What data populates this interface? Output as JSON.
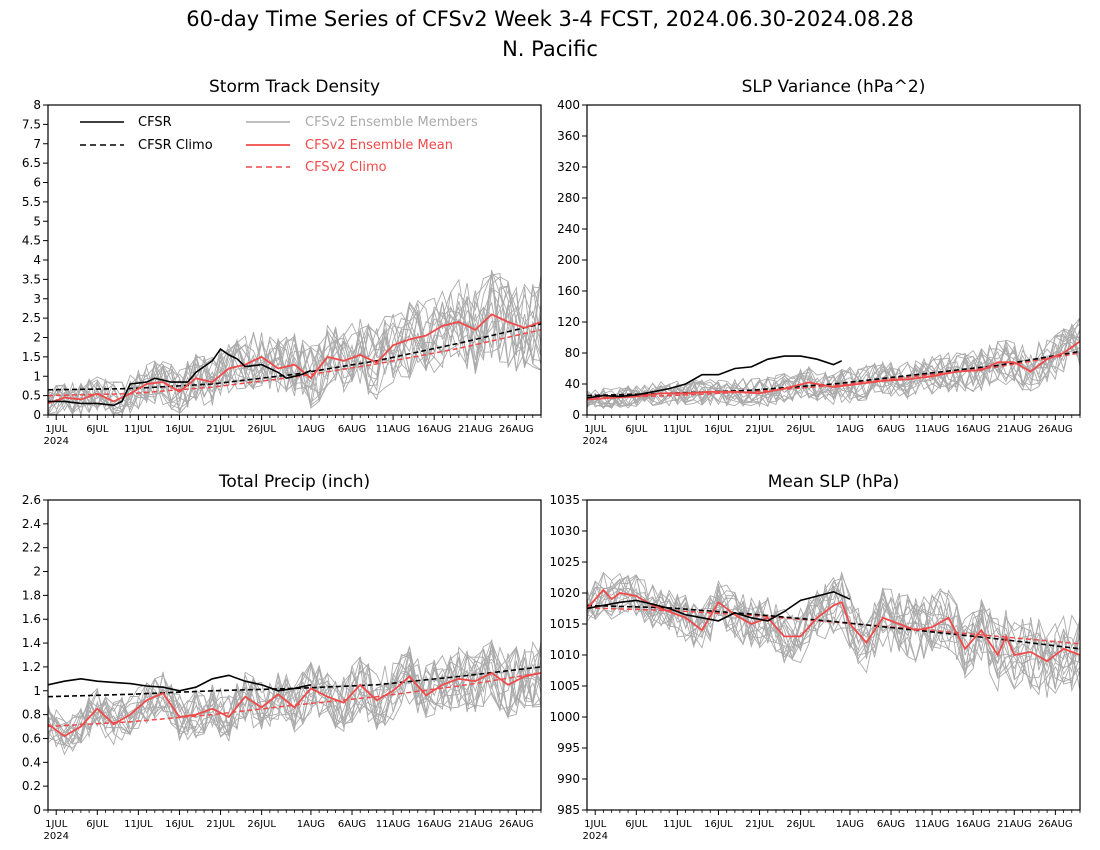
{
  "figure": {
    "title_line1": "60-day Time Series of CFSv2 Week 3-4 FCST, 2024.06.30-2024.08.28",
    "title_line2": "N. Pacific"
  },
  "colors": {
    "cfsr": "#000000",
    "members": "#aaaaaa",
    "ens_mean": "#f04a4a",
    "cfsv2_climo": "#f04a4a"
  },
  "legend": {
    "cfsr": "CFSR",
    "cfsr_climo": "CFSR Climo",
    "members": "CFSv2 Ensemble Members",
    "ens_mean": "CFSv2 Ensemble Mean",
    "cfsv2_climo": "CFSv2 Climo"
  },
  "x_axis": {
    "tick_labels": [
      "1JUL",
      "6JUL",
      "11JUL",
      "16JUL",
      "21JUL",
      "26JUL",
      "1AUG",
      "6AUG",
      "11AUG",
      "16AUG",
      "21AUG",
      "26AUG"
    ],
    "tick_days": [
      1,
      6,
      11,
      16,
      21,
      26,
      32,
      37,
      42,
      47,
      52,
      57
    ],
    "year_label": "2024",
    "day_range": [
      0,
      60
    ]
  },
  "chart_data": [
    {
      "id": "storm_track",
      "type": "line",
      "title": "Storm Track Density",
      "ylim": [
        0,
        8
      ],
      "yticks": [
        0,
        0.5,
        1,
        1.5,
        2,
        2.5,
        3,
        3.5,
        4,
        4.5,
        5,
        5.5,
        6,
        6.5,
        7,
        7.5,
        8
      ],
      "ytick_labels": [
        "0",
        "0.5",
        "1",
        "1.5",
        "2",
        "2.5",
        "3",
        "3.5",
        "4",
        "4.5",
        "5",
        "5.5",
        "6",
        "6.5",
        "7",
        "7.5",
        "8"
      ],
      "series": [
        {
          "name": "CFSR Climo",
          "style": "cfsr_climo",
          "x": [
            0,
            10,
            20,
            30,
            40,
            50,
            60
          ],
          "values": [
            0.65,
            0.68,
            0.8,
            1.05,
            1.4,
            1.85,
            2.35
          ]
        },
        {
          "name": "CFSv2 Climo",
          "style": "cfsv2_climo",
          "x": [
            0,
            10,
            20,
            30,
            40,
            50,
            60
          ],
          "values": [
            0.5,
            0.55,
            0.72,
            0.98,
            1.32,
            1.72,
            2.2
          ]
        },
        {
          "name": "CFSR",
          "style": "cfsr",
          "x": [
            0,
            2,
            4,
            6,
            8,
            9,
            10,
            12,
            13,
            15,
            17,
            18,
            20,
            21,
            22,
            23,
            24,
            26,
            28,
            29,
            30,
            31,
            32
          ],
          "values": [
            0.35,
            0.35,
            0.3,
            0.3,
            0.25,
            0.35,
            0.8,
            0.85,
            0.95,
            0.85,
            0.85,
            1.1,
            1.4,
            1.7,
            1.55,
            1.45,
            1.25,
            1.3,
            1.1,
            0.95,
            1.0,
            1.05,
            1.15
          ]
        },
        {
          "name": "CFSv2 Ensemble Mean",
          "style": "ens_mean",
          "x": [
            0,
            2,
            4,
            6,
            8,
            10,
            12,
            14,
            16,
            18,
            20,
            22,
            24,
            26,
            28,
            30,
            32,
            34,
            36,
            38,
            40,
            42,
            44,
            46,
            48,
            50,
            52,
            54,
            56,
            58,
            60
          ],
          "values": [
            0.3,
            0.45,
            0.4,
            0.55,
            0.35,
            0.55,
            0.8,
            0.85,
            0.6,
            0.95,
            0.85,
            1.2,
            1.3,
            1.5,
            1.2,
            1.3,
            0.95,
            1.5,
            1.4,
            1.55,
            1.35,
            1.8,
            1.95,
            2.05,
            2.3,
            2.4,
            2.2,
            2.6,
            2.4,
            2.25,
            2.4
          ]
        }
      ]
    },
    {
      "id": "slp_variance",
      "type": "line",
      "title": "SLP Variance (hPa^2)",
      "ylim": [
        0,
        400
      ],
      "yticks": [
        0,
        40,
        80,
        120,
        160,
        200,
        240,
        280,
        320,
        360,
        400
      ],
      "ytick_labels": [
        "0",
        "40",
        "80",
        "120",
        "160",
        "200",
        "240",
        "280",
        "320",
        "360",
        "400"
      ],
      "series": [
        {
          "name": "CFSR Climo",
          "style": "cfsr_climo",
          "x": [
            0,
            10,
            20,
            30,
            40,
            50,
            60
          ],
          "values": [
            25,
            28,
            32,
            40,
            52,
            64,
            82
          ]
        },
        {
          "name": "CFSv2 Climo",
          "style": "cfsv2_climo",
          "x": [
            0,
            10,
            20,
            30,
            40,
            50,
            60
          ],
          "values": [
            22,
            25,
            30,
            38,
            50,
            62,
            80
          ]
        },
        {
          "name": "CFSR",
          "style": "cfsr",
          "x": [
            0,
            2,
            4,
            6,
            8,
            10,
            12,
            14,
            16,
            18,
            20,
            22,
            24,
            26,
            28,
            30,
            31
          ],
          "values": [
            22,
            25,
            24,
            26,
            30,
            34,
            40,
            52,
            52,
            60,
            62,
            72,
            76,
            76,
            72,
            65,
            70
          ]
        },
        {
          "name": "CFSv2 Ensemble Mean",
          "style": "ens_mean",
          "x": [
            0,
            3,
            6,
            9,
            12,
            15,
            18,
            21,
            24,
            27,
            30,
            33,
            36,
            39,
            42,
            45,
            48,
            50,
            52,
            54,
            56,
            58,
            60
          ],
          "values": [
            20,
            22,
            24,
            28,
            28,
            30,
            30,
            28,
            34,
            42,
            36,
            40,
            44,
            46,
            50,
            56,
            58,
            68,
            68,
            56,
            72,
            80,
            95
          ]
        }
      ]
    },
    {
      "id": "total_precip",
      "type": "line",
      "title": "Total Precip (inch)",
      "ylim": [
        0,
        2.6
      ],
      "yticks": [
        0,
        0.2,
        0.4,
        0.6,
        0.8,
        1,
        1.2,
        1.4,
        1.6,
        1.8,
        2,
        2.2,
        2.4,
        2.6
      ],
      "ytick_labels": [
        "0",
        "0.2",
        "0.4",
        "0.6",
        "0.8",
        "1",
        "1.2",
        "1.4",
        "1.6",
        "1.8",
        "2",
        "2.2",
        "2.4",
        "2.6"
      ],
      "series": [
        {
          "name": "CFSR Climo",
          "style": "cfsr_climo",
          "x": [
            0,
            10,
            20,
            30,
            40,
            50,
            60
          ],
          "values": [
            0.95,
            0.97,
            1.0,
            1.02,
            1.05,
            1.12,
            1.2
          ]
        },
        {
          "name": "CFSv2 Climo",
          "style": "cfsv2_climo",
          "x": [
            0,
            10,
            20,
            30,
            40,
            50,
            60
          ],
          "values": [
            0.7,
            0.74,
            0.8,
            0.88,
            0.95,
            1.04,
            1.15
          ]
        },
        {
          "name": "CFSR",
          "style": "cfsr",
          "x": [
            0,
            2,
            4,
            6,
            8,
            10,
            12,
            14,
            16,
            18,
            20,
            22,
            24,
            26,
            28,
            30,
            32
          ],
          "values": [
            1.05,
            1.08,
            1.1,
            1.08,
            1.07,
            1.06,
            1.04,
            1.03,
            1.0,
            1.03,
            1.1,
            1.13,
            1.08,
            1.05,
            1.0,
            1.02,
            1.05
          ]
        },
        {
          "name": "CFSv2 Ensemble Mean",
          "style": "ens_mean",
          "x": [
            0,
            2,
            4,
            6,
            8,
            10,
            12,
            14,
            16,
            18,
            20,
            22,
            24,
            26,
            28,
            30,
            32,
            34,
            36,
            38,
            40,
            42,
            44,
            46,
            48,
            50,
            52,
            54,
            56,
            58,
            60
          ],
          "values": [
            0.72,
            0.62,
            0.7,
            0.85,
            0.72,
            0.8,
            0.92,
            0.98,
            0.78,
            0.8,
            0.85,
            0.78,
            0.95,
            0.86,
            0.97,
            0.86,
            1.02,
            0.95,
            0.9,
            1.05,
            0.92,
            1.0,
            1.12,
            0.96,
            1.05,
            1.1,
            1.08,
            1.15,
            1.05,
            1.12,
            1.15
          ]
        }
      ]
    },
    {
      "id": "mean_slp",
      "type": "line",
      "title": "Mean SLP (hPa)",
      "ylim": [
        985,
        1035
      ],
      "yticks": [
        985,
        990,
        995,
        1000,
        1005,
        1010,
        1015,
        1020,
        1025,
        1030,
        1035
      ],
      "ytick_labels": [
        "985",
        "990",
        "995",
        "1000",
        "1005",
        "1010",
        "1015",
        "1020",
        "1025",
        "1030",
        "1035"
      ],
      "series": [
        {
          "name": "CFSR Climo",
          "style": "cfsr_climo",
          "x": [
            0,
            10,
            20,
            30,
            40,
            50,
            60
          ],
          "values": [
            1018,
            1017.6,
            1016.6,
            1015.4,
            1014.0,
            1012.6,
            1011.0
          ]
        },
        {
          "name": "CFSv2 Climo",
          "style": "cfsv2_climo",
          "x": [
            0,
            10,
            20,
            30,
            40,
            50,
            60
          ],
          "values": [
            1017.6,
            1017.2,
            1016.4,
            1015.3,
            1014.2,
            1013.0,
            1011.8
          ]
        },
        {
          "name": "CFSR",
          "style": "cfsr",
          "x": [
            0,
            2,
            4,
            6,
            8,
            10,
            12,
            14,
            16,
            18,
            20,
            22,
            24,
            26,
            28,
            30,
            32
          ],
          "values": [
            1017.5,
            1018,
            1018.5,
            1018.8,
            1018.2,
            1017.5,
            1016.5,
            1016,
            1015.5,
            1016.8,
            1016,
            1015.5,
            1017,
            1018.8,
            1019.5,
            1020.2,
            1019
          ]
        },
        {
          "name": "CFSv2 Ensemble Mean",
          "style": "ens_mean",
          "x": [
            0,
            2,
            3,
            4,
            6,
            8,
            10,
            12,
            14,
            16,
            18,
            20,
            22,
            24,
            26,
            28,
            30,
            31,
            32,
            34,
            36,
            38,
            40,
            42,
            44,
            46,
            48,
            50,
            51,
            52,
            54,
            56,
            58,
            60
          ],
          "values": [
            1017.5,
            1020.5,
            1019,
            1020,
            1019.5,
            1018,
            1017,
            1016,
            1014,
            1018.5,
            1016.5,
            1015,
            1016,
            1013,
            1013,
            1016,
            1018,
            1018.5,
            1015,
            1012,
            1016,
            1015,
            1014,
            1014.5,
            1016,
            1011,
            1014,
            1010,
            1013,
            1010,
            1010.5,
            1009,
            1011,
            1010
          ]
        }
      ]
    }
  ]
}
